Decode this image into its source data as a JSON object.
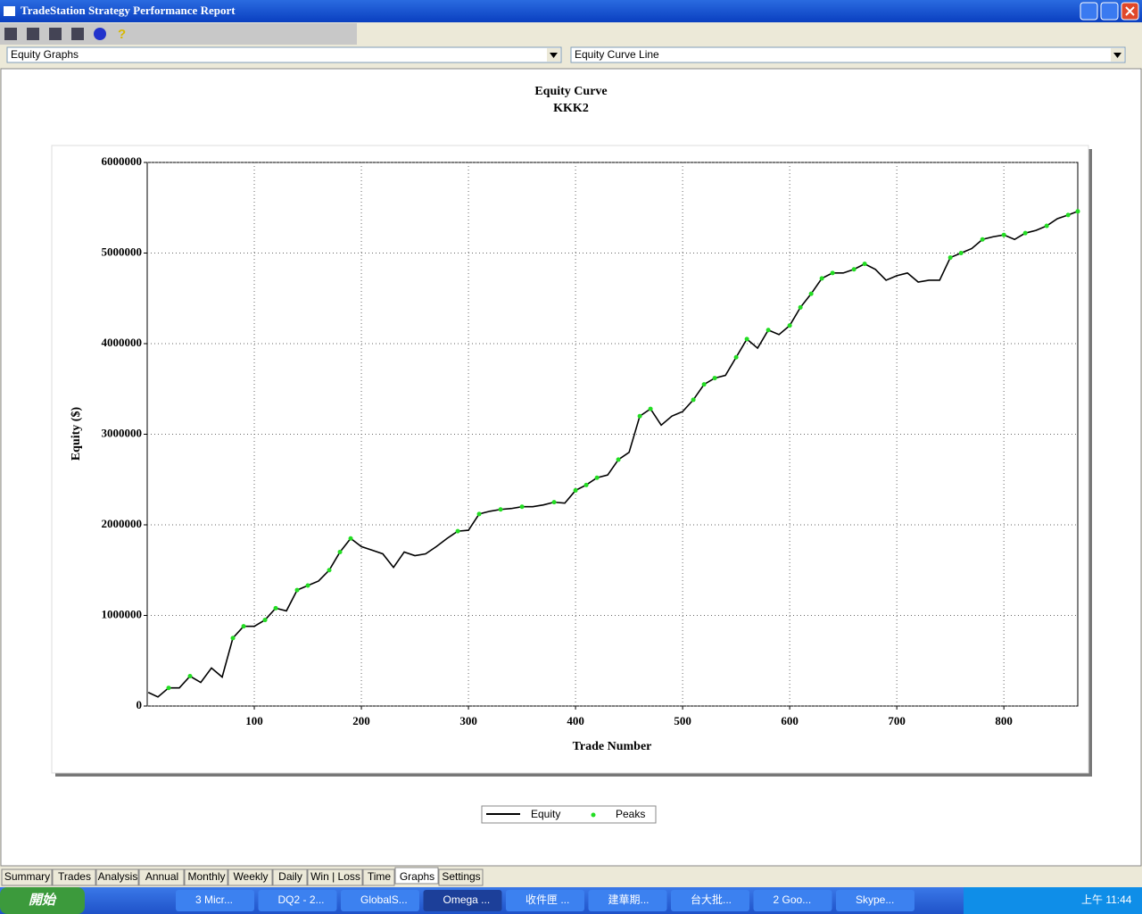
{
  "window": {
    "title": "TradeStation Strategy Performance Report"
  },
  "selectors": [
    "Equity Graphs",
    "Equity Curve Line"
  ],
  "tabs": [
    "Summary",
    "Trades",
    "Analysis",
    "Annual",
    "Monthly",
    "Weekly",
    "Daily",
    "Win | Loss",
    "Time",
    "Graphs",
    "Settings"
  ],
  "active_tab": "Graphs",
  "taskbar": {
    "start": "開始",
    "items": [
      "3 Micr...",
      "DQ2 - 2...",
      "GlobalS...",
      "Omega ...",
      "收件匣 ...",
      "建華期...",
      "台大批...",
      "2 Goo...",
      "Skype..."
    ],
    "clock": "上午 11:44"
  },
  "chart_data": {
    "type": "line",
    "title": "Equity Curve",
    "subtitle": "KKK2",
    "x_label": "Trade Number",
    "y_label": "Equity ($)",
    "xlim": [
      0,
      869
    ],
    "xticks": [
      100,
      200,
      300,
      400,
      500,
      600,
      700,
      800
    ],
    "ylim": [
      0,
      6000000
    ],
    "yticks": [
      0,
      1000000,
      2000000,
      3000000,
      4000000,
      5000000,
      6000000
    ],
    "grid": true,
    "series": [
      {
        "name": "Equity",
        "color": "#000000",
        "type": "line",
        "x": [
          1,
          10,
          20,
          30,
          40,
          50,
          60,
          70,
          80,
          90,
          100,
          110,
          120,
          130,
          140,
          150,
          160,
          170,
          180,
          190,
          200,
          210,
          220,
          230,
          240,
          250,
          260,
          270,
          280,
          290,
          300,
          310,
          320,
          330,
          340,
          350,
          360,
          370,
          380,
          390,
          400,
          410,
          420,
          430,
          440,
          450,
          460,
          470,
          480,
          490,
          500,
          510,
          520,
          530,
          540,
          550,
          560,
          570,
          580,
          590,
          600,
          610,
          620,
          630,
          640,
          650,
          660,
          670,
          680,
          690,
          700,
          710,
          720,
          730,
          740,
          750,
          760,
          770,
          780,
          790,
          800,
          810,
          820,
          830,
          840,
          850,
          860,
          869
        ],
        "values": [
          150000,
          100000,
          200000,
          200000,
          330000,
          260000,
          420000,
          320000,
          750000,
          880000,
          880000,
          950000,
          1080000,
          1050000,
          1280000,
          1330000,
          1380000,
          1500000,
          1700000,
          1850000,
          1760000,
          1720000,
          1680000,
          1530000,
          1700000,
          1660000,
          1680000,
          1760000,
          1850000,
          1930000,
          1940000,
          2120000,
          2150000,
          2170000,
          2180000,
          2200000,
          2200000,
          2220000,
          2250000,
          2240000,
          2380000,
          2440000,
          2520000,
          2550000,
          2720000,
          2800000,
          3200000,
          3280000,
          3100000,
          3200000,
          3250000,
          3380000,
          3550000,
          3620000,
          3650000,
          3850000,
          4050000,
          3950000,
          4150000,
          4100000,
          4200000,
          4400000,
          4550000,
          4720000,
          4780000,
          4780000,
          4820000,
          4880000,
          4820000,
          4700000,
          4750000,
          4780000,
          4680000,
          4700000,
          4700000,
          4950000,
          5000000,
          5050000,
          5150000,
          5180000,
          5200000,
          5150000,
          5220000,
          5250000,
          5300000,
          5380000,
          5420000,
          5460000
        ]
      },
      {
        "name": "Peaks",
        "color": "#22dd22",
        "type": "scatter",
        "x": [
          20,
          40,
          80,
          90,
          110,
          120,
          140,
          150,
          170,
          180,
          190,
          290,
          310,
          330,
          350,
          380,
          400,
          410,
          420,
          440,
          460,
          470,
          510,
          520,
          530,
          550,
          560,
          580,
          600,
          610,
          620,
          630,
          640,
          660,
          670,
          750,
          760,
          780,
          800,
          820,
          840,
          860,
          869
        ],
        "values": [
          200000,
          330000,
          750000,
          880000,
          950000,
          1080000,
          1280000,
          1330000,
          1500000,
          1700000,
          1850000,
          1930000,
          2120000,
          2170000,
          2200000,
          2250000,
          2380000,
          2440000,
          2520000,
          2720000,
          3200000,
          3280000,
          3380000,
          3550000,
          3620000,
          3850000,
          4050000,
          4150000,
          4200000,
          4400000,
          4550000,
          4720000,
          4780000,
          4820000,
          4880000,
          4950000,
          5000000,
          5150000,
          5200000,
          5220000,
          5300000,
          5420000,
          5460000
        ]
      }
    ]
  }
}
